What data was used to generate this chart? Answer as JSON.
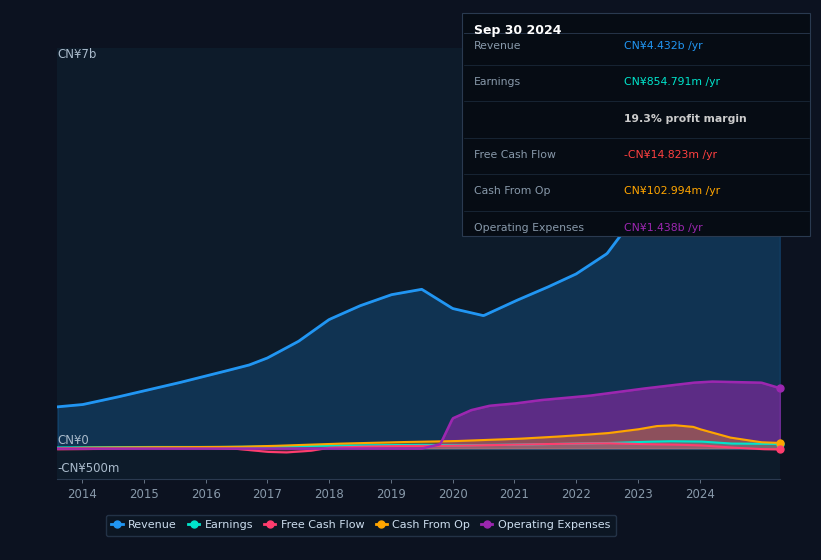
{
  "background_color": "#0c1220",
  "plot_bg_color": "#0d1b2a",
  "revenue_color": "#2196f3",
  "earnings_color": "#00e5cc",
  "fcf_color": "#ff3d6e",
  "cashfromop_color": "#ffa500",
  "opex_color": "#9c27b0",
  "info_box": {
    "title": "Sep 30 2024",
    "rows": [
      {
        "label": "Revenue",
        "value": "CN¥4.432b /yr",
        "color": "#2196f3"
      },
      {
        "label": "Earnings",
        "value": "CN¥854.791m /yr",
        "color": "#00e5cc"
      },
      {
        "label": "",
        "value": "19.3% profit margin",
        "color": "#cccccc",
        "bold": true
      },
      {
        "label": "Free Cash Flow",
        "value": "-CN¥14.823m /yr",
        "color": "#ff4040"
      },
      {
        "label": "Cash From Op",
        "value": "CN¥102.994m /yr",
        "color": "#ffa500"
      },
      {
        "label": "Operating Expenses",
        "value": "CN¥1.438b /yr",
        "color": "#9c27b0"
      }
    ]
  },
  "legend": [
    {
      "label": "Revenue",
      "color": "#2196f3"
    },
    {
      "label": "Earnings",
      "color": "#00e5cc"
    },
    {
      "label": "Free Cash Flow",
      "color": "#ff3d6e"
    },
    {
      "label": "Cash From Op",
      "color": "#ffa500"
    },
    {
      "label": "Operating Expenses",
      "color": "#9c27b0"
    }
  ],
  "ylabel_top": "CN¥7b",
  "ylabel_zero": "CN¥0",
  "ylabel_bottom": "-CN¥500m",
  "ylim_min": -0.55,
  "ylim_max": 7.3,
  "xlim_min": 2013.6,
  "xlim_max": 2025.3
}
